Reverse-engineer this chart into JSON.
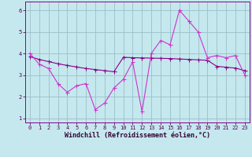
{
  "xlabel": "Windchill (Refroidissement éolien,°C)",
  "bg_color": "#c5e8ee",
  "grid_color": "#9bbfc8",
  "line_data_color": "#cc33cc",
  "line_trend_color": "#880088",
  "x": [
    0,
    1,
    2,
    3,
    4,
    5,
    6,
    7,
    8,
    9,
    10,
    11,
    12,
    13,
    14,
    15,
    16,
    17,
    18,
    19,
    20,
    21,
    22,
    23
  ],
  "y_data": [
    4.0,
    3.5,
    3.3,
    2.6,
    2.2,
    2.5,
    2.6,
    1.4,
    1.7,
    2.4,
    2.8,
    3.6,
    1.3,
    4.0,
    4.6,
    4.4,
    6.0,
    5.5,
    5.0,
    3.8,
    3.9,
    3.8,
    3.9,
    3.0
  ],
  "y_trend": [
    3.85,
    3.72,
    3.62,
    3.52,
    3.44,
    3.37,
    3.3,
    3.25,
    3.2,
    3.15,
    3.82,
    3.8,
    3.79,
    3.78,
    3.77,
    3.76,
    3.74,
    3.72,
    3.7,
    3.68,
    3.4,
    3.36,
    3.32,
    3.2
  ],
  "ylim": [
    0.8,
    6.4
  ],
  "yticks": [
    1,
    2,
    3,
    4,
    5,
    6
  ],
  "xticks": [
    0,
    1,
    2,
    3,
    4,
    5,
    6,
    7,
    8,
    9,
    10,
    11,
    12,
    13,
    14,
    15,
    16,
    17,
    18,
    19,
    20,
    21,
    22,
    23
  ],
  "tick_fontsize": 5.0,
  "xlabel_fontsize": 6.0,
  "markersize": 2.0,
  "linewidth": 0.8
}
